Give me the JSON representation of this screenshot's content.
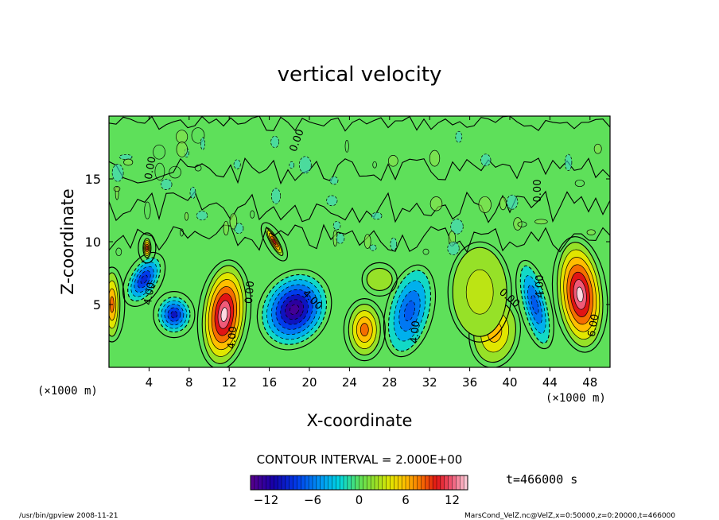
{
  "chart_data": {
    "type": "contour",
    "title": "vertical velocity",
    "xlabel": "X-coordinate",
    "ylabel": "Z-coordinate",
    "x_unit_left": "(×1000 m)",
    "x_unit_right": "(×1000 m)",
    "xlim": [
      0,
      50
    ],
    "ylim": [
      0,
      20
    ],
    "xticks": [
      "4",
      "8",
      "12",
      "16",
      "20",
      "24",
      "28",
      "32",
      "36",
      "40",
      "44",
      "48"
    ],
    "yticks": [
      "5",
      "10",
      "15"
    ],
    "contour_interval_text": "CONTOUR INTERVAL = 2.000E+00",
    "time_label": "t=466000 s",
    "colorbar": {
      "min": -14,
      "max": 14,
      "ticks": [
        "−12",
        "−6",
        "0",
        "6",
        "12"
      ]
    },
    "contour_labels": [
      "0.00",
      "0.00",
      "0.00",
      "0.00",
      "0.00",
      "4.00",
      "4.00",
      "4.00",
      "4.00",
      "4.00",
      "6.00"
    ],
    "cells": [
      {
        "x": 11.5,
        "z": 4.2,
        "value": 14
      },
      {
        "x": 18.5,
        "z": 4.6,
        "value": -13
      },
      {
        "x": 25.5,
        "z": 3.0,
        "value": 8
      },
      {
        "x": 30.0,
        "z": 4.5,
        "value": -7
      },
      {
        "x": 38.5,
        "z": 2.8,
        "value": 6
      },
      {
        "x": 47.0,
        "z": 5.8,
        "value": 14
      },
      {
        "x": 42.5,
        "z": 5.0,
        "value": -7
      },
      {
        "x": 6.5,
        "z": 4.2,
        "value": -10
      },
      {
        "x": 3.5,
        "z": 7.0,
        "value": -9
      },
      {
        "x": 16.5,
        "z": 10.0,
        "value": 10
      },
      {
        "x": 3.8,
        "z": 9.5,
        "value": 9
      },
      {
        "x": 0.3,
        "z": 5.0,
        "value": 8
      },
      {
        "x": 37.0,
        "z": 6.0,
        "value": 3
      },
      {
        "x": 27.0,
        "z": 7.0,
        "value": 2.5
      }
    ]
  },
  "footer": {
    "left": "/usr/bin/gpview   2008-11-21",
    "right": "MarsCond_VelZ.nc@VelZ,x=0:50000,z=0:20000,t=466000"
  }
}
